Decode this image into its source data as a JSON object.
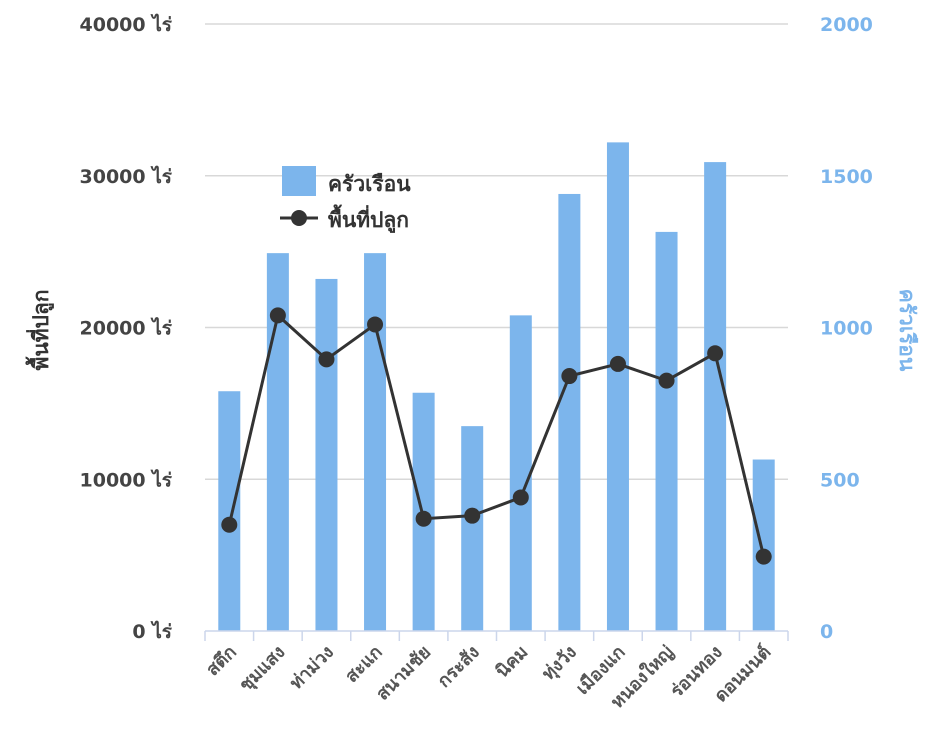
{
  "chart_data": {
    "type": "bar+line",
    "categories": [
      "สตึก",
      "ชุมแสง",
      "ท่าม่วง",
      "สะแก",
      "สนามชัย",
      "กระสัง",
      "นิคม",
      "ทุ่งวัง",
      "เมืองแก",
      "หนองใหญ่",
      "ร่อนทอง",
      "ดอนมนต์"
    ],
    "series": [
      {
        "name": "ครัวเรือน",
        "type": "bar",
        "axis": "right",
        "color": "#7cb5ec",
        "values": [
          790,
          1245,
          1160,
          1245,
          785,
          675,
          1040,
          1440,
          1610,
          1315,
          1545,
          565
        ]
      },
      {
        "name": "พื้นที่ปลูก",
        "type": "line",
        "axis": "left",
        "color": "#333333",
        "values": [
          7000,
          20800,
          17900,
          20200,
          7400,
          7600,
          8800,
          16800,
          17600,
          16500,
          18300,
          4900
        ]
      }
    ],
    "y_left": {
      "title": "พื้นที่ปลูก",
      "min": 0,
      "max": 40000,
      "tick_labels": [
        "0 ไร่",
        "10000 ไร่",
        "20000 ไร่",
        "30000 ไร่",
        "40000 ไร่"
      ],
      "tick_values": [
        0,
        10000,
        20000,
        30000,
        40000
      ]
    },
    "y_right": {
      "title": "ครัวเรือน",
      "min": 0,
      "max": 2000,
      "tick_labels": [
        "0",
        "500",
        "1000",
        "1500",
        "2000"
      ],
      "tick_values": [
        0,
        500,
        1000,
        1500,
        2000
      ]
    },
    "grid": true,
    "legend": {
      "position": "top-left-inside",
      "items": [
        "ครัวเรือน",
        "พื้นที่ปลูก"
      ]
    }
  }
}
